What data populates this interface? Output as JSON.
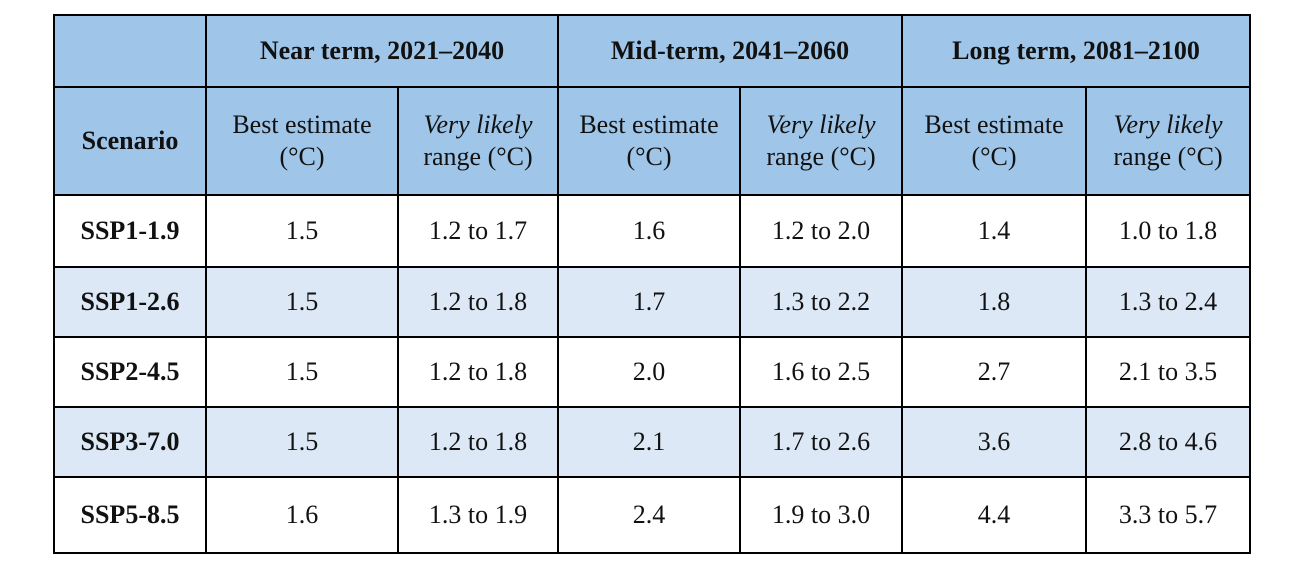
{
  "table": {
    "periods": [
      "Near term, 2021–2040",
      "Mid-term, 2041–2060",
      "Long term, 2081–2100"
    ],
    "scenario_header": "Scenario",
    "best_estimate_header": {
      "line1": "Best estimate",
      "line2": "(°C)"
    },
    "range_header": {
      "italic": "Very likely",
      "line2": "range (°C)"
    },
    "rows": [
      {
        "scenario": "SSP1-1.9",
        "values": [
          "1.5",
          "1.2 to 1.7",
          "1.6",
          "1.2 to 2.0",
          "1.4",
          "1.0 to 1.8"
        ]
      },
      {
        "scenario": "SSP1-2.6",
        "values": [
          "1.5",
          "1.2 to 1.8",
          "1.7",
          "1.3 to 2.2",
          "1.8",
          "1.3 to 2.4"
        ]
      },
      {
        "scenario": "SSP2-4.5",
        "values": [
          "1.5",
          "1.2 to 1.8",
          "2.0",
          "1.6 to 2.5",
          "2.7",
          "2.1 to 3.5"
        ]
      },
      {
        "scenario": "SSP3-7.0",
        "values": [
          "1.5",
          "1.2 to 1.8",
          "2.1",
          "1.7 to 2.6",
          "3.6",
          "2.8 to 4.6"
        ]
      },
      {
        "scenario": "SSP5-8.5",
        "values": [
          "1.6",
          "1.3 to 1.9",
          "2.4",
          "1.9 to 3.0",
          "4.4",
          "3.3 to 5.7"
        ]
      }
    ],
    "colors": {
      "header_bg": "#9fc5e8",
      "alt_row_bg": "#dce8f5",
      "border": "#000000"
    }
  }
}
